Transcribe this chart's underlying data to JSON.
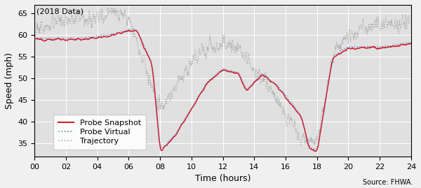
{
  "title": "(2018 Data)",
  "xlabel": "Time (hours)",
  "ylabel": "Speed (mph)",
  "source_text": "Source: FHWA.",
  "xlim": [
    0,
    24
  ],
  "ylim": [
    32,
    67
  ],
  "yticks": [
    35,
    40,
    45,
    50,
    55,
    60,
    65
  ],
  "xticks": [
    0,
    2,
    4,
    6,
    8,
    10,
    12,
    14,
    16,
    18,
    20,
    22,
    24
  ],
  "xticklabels": [
    "00",
    "02",
    "04",
    "06",
    "08",
    "10",
    "12",
    "14",
    "16",
    "18",
    "20",
    "22",
    "24"
  ],
  "line_probe_snapshot_color": "#cc2233",
  "line_probe_virtual_color": "#6688cc",
  "line_trajectory_color": "#aaaaaa",
  "background_color": "#e0e0e0",
  "fig_background_color": "#f0f0f0",
  "legend_labels": [
    "Probe Snapshot",
    "Probe Virtual",
    "Trajectory"
  ],
  "fig_width": 6.0,
  "fig_height": 2.69,
  "dpi": 100
}
